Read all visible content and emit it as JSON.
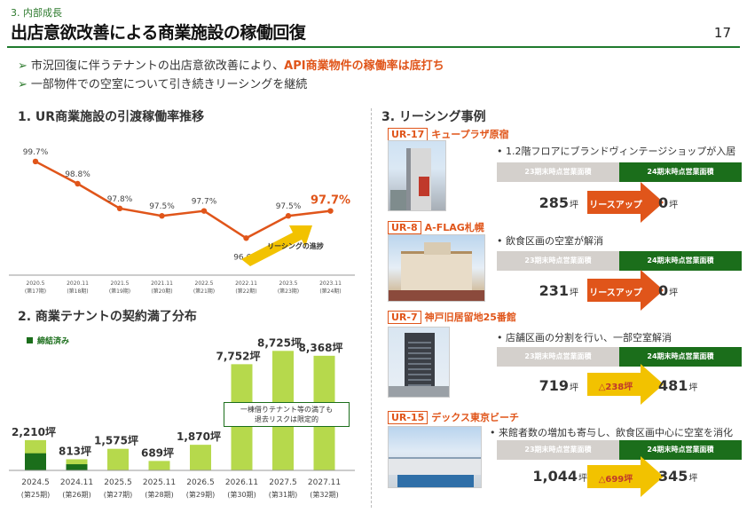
{
  "header": {
    "section": "3. 内部成長",
    "title": "出店意欲改善による商業施設の稼働回復",
    "page_number": "17"
  },
  "bullets": [
    {
      "arrow": "➢",
      "text": "市況回復に伴うテナントの出店意欲改善により、",
      "highlight": "API商業物件の稼働率は底打ち"
    },
    {
      "arrow": "➢",
      "text": "一部物件での空室について引き続きリーシングを継続",
      "highlight": ""
    }
  ],
  "section1": {
    "title": "1. UR商業施設の引渡稼働率推移"
  },
  "section2": {
    "title": "2. 商業テナントの契約満了分布",
    "legend": "締結済み"
  },
  "section3": {
    "title": "3. リーシング事例"
  },
  "colors": {
    "accent_orange": "#e0551a",
    "dark_green": "#1b6e1b",
    "light_green": "#b6d94c",
    "grey_header": "#d4d0cc",
    "yellow_arrow": "#f2c200"
  },
  "chart_data": [
    {
      "type": "line",
      "title": "1. UR商業施設の引渡稼働率推移",
      "categories": [
        "2020.5",
        "2020.11",
        "2021.5",
        "2021.11",
        "2022.5",
        "2022.11",
        "2023.5",
        "2023.11"
      ],
      "sub_categories": [
        "(第17期)",
        "(第18期)",
        "(第19期)",
        "(第20期)",
        "(第21期)",
        "(第22期)",
        "(第23期)",
        "(第24期)"
      ],
      "value_labels": [
        "99.7%",
        "98.8%",
        "97.8%",
        "97.5%",
        "97.7%",
        "96.6%",
        "97.5%",
        "97.7%"
      ],
      "values": [
        99.7,
        98.8,
        97.8,
        97.5,
        97.7,
        96.6,
        97.5,
        97.7
      ],
      "ylim": [
        96.0,
        100.2
      ],
      "color": "#e0551a",
      "annotation": "リーシングの進捗",
      "grid": false
    },
    {
      "type": "bar",
      "title": "2. 商業テナントの契約満了分布",
      "categories": [
        "2024.5",
        "2024.11",
        "2025.5",
        "2025.11",
        "2026.5",
        "2026.11",
        "2027.5",
        "2027.11"
      ],
      "sub_categories": [
        "(第25期)",
        "(第26期)",
        "(第27期)",
        "(第28期)",
        "(第29期)",
        "(第30期)",
        "(第31期)",
        "(第32期)"
      ],
      "value_labels": [
        "2,210坪",
        "813坪",
        "1,575坪",
        "689坪",
        "1,870坪",
        "7,752坪",
        "8,725坪",
        "8,368坪"
      ],
      "values": [
        2210,
        813,
        1575,
        689,
        1870,
        7752,
        8725,
        8368
      ],
      "signed_values": [
        1250,
        450,
        0,
        0,
        0,
        0,
        0,
        0
      ],
      "ylim": [
        0,
        9200
      ],
      "legend": [
        "締結済み"
      ],
      "callout": [
        "一棟借りテナント等の満了も",
        "退去リスクは限定的"
      ]
    }
  ],
  "cases": [
    {
      "code": "UR-17",
      "name": "キュープラザ原宿",
      "desc": "1.2階フロアにブランドヴィンテージショップが入居",
      "before_label": "23期末時点営業面積",
      "after_label": "24期末時点営業面積",
      "before_value": "285",
      "after_value": "0",
      "unit": "坪",
      "arrow_text": "リースアップ",
      "arrow_style": "orange"
    },
    {
      "code": "UR-8",
      "name": "A-FLAG札幌",
      "desc": "飲食区画の空室が解消",
      "before_label": "23期末時点営業面積",
      "after_label": "24期末時点営業面積",
      "before_value": "231",
      "after_value": "0",
      "unit": "坪",
      "arrow_text": "リースアップ",
      "arrow_style": "orange"
    },
    {
      "code": "UR-7",
      "name": "神戸旧居留地25番館",
      "desc": "店舗区画の分割を行い、一部空室解消",
      "before_label": "23期末時点営業面積",
      "after_label": "24期末時点営業面積",
      "before_value": "719",
      "after_value": "481",
      "unit": "坪",
      "arrow_text": "△238坪",
      "arrow_style": "yellow"
    },
    {
      "code": "UR-15",
      "name": "デックス東京ビーチ",
      "desc": "来館者数の増加も寄与し、飲食区画中心に空室を消化",
      "before_label": "23期末時点営業面積",
      "after_label": "24期末時点営業面積",
      "before_value": "1,044",
      "after_value": "345",
      "unit": "坪",
      "arrow_text": "△699坪",
      "arrow_style": "yellow"
    }
  ]
}
